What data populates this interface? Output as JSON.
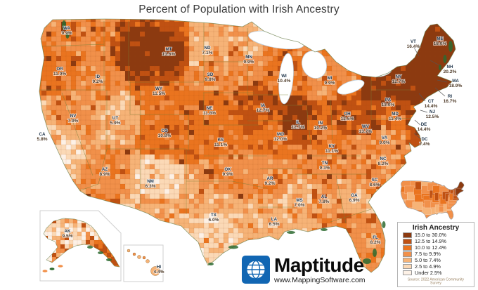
{
  "title": "Percent of Population with Irish Ancestry",
  "legend": {
    "title": "Irish Ancestry",
    "classes": [
      {
        "label": "15.0 to 30.0%",
        "color": "#8c3a10"
      },
      {
        "label": "12.5 to 14.9%",
        "color": "#c05112"
      },
      {
        "label": "10.0 to 12.4%",
        "color": "#ea741f"
      },
      {
        "label": "7.5 to 9.9%",
        "color": "#f1904a"
      },
      {
        "label": "5.0 to 7.4%",
        "color": "#f6b377"
      },
      {
        "label": "2.5 to 4.9%",
        "color": "#fbd9b6"
      },
      {
        "label": "Under 2.5%",
        "color": "#fdf1e6"
      }
    ],
    "source": "Source: 2022 American Community Survey"
  },
  "branding": {
    "name": "Maptitude",
    "url": "www.MappingSoftware.com",
    "logo_color": "#1166b3"
  },
  "chart_data": {
    "type": "choropleth",
    "region": "United States counties",
    "metric": "Percent of population with Irish ancestry",
    "unit": "%",
    "states": [
      {
        "abbr": "WA",
        "value": "9.9%"
      },
      {
        "abbr": "OR",
        "value": "11.0%"
      },
      {
        "abbr": "CA",
        "value": "5.8%"
      },
      {
        "abbr": "NV",
        "value": "7.9%"
      },
      {
        "abbr": "ID",
        "value": "9.2%"
      },
      {
        "abbr": "MT",
        "value": "13.6%"
      },
      {
        "abbr": "WY",
        "value": "11.5%"
      },
      {
        "abbr": "UT",
        "value": "5.9%"
      },
      {
        "abbr": "CO",
        "value": "10.8%"
      },
      {
        "abbr": "AZ",
        "value": "8.9%"
      },
      {
        "abbr": "NM",
        "value": "6.3%"
      },
      {
        "abbr": "ND",
        "value": "7.1%"
      },
      {
        "abbr": "SD",
        "value": "9.8%"
      },
      {
        "abbr": "NE",
        "value": "11.8%"
      },
      {
        "abbr": "KS",
        "value": "11.1%"
      },
      {
        "abbr": "OK",
        "value": "9.9%"
      },
      {
        "abbr": "TX",
        "value": "6.0%"
      },
      {
        "abbr": "MN",
        "value": "9.9%"
      },
      {
        "abbr": "IA",
        "value": "12.7%"
      },
      {
        "abbr": "MO",
        "value": "12.0%"
      },
      {
        "abbr": "AR",
        "value": "9.2%"
      },
      {
        "abbr": "LA",
        "value": "6.5%"
      },
      {
        "abbr": "WI",
        "value": "10.4%"
      },
      {
        "abbr": "IL",
        "value": "12.7%"
      },
      {
        "abbr": "MI",
        "value": "9.9%"
      },
      {
        "abbr": "IN",
        "value": "10.2%"
      },
      {
        "abbr": "OH",
        "value": "12.5%"
      },
      {
        "abbr": "KY",
        "value": "11.1%"
      },
      {
        "abbr": "TN",
        "value": "9.3%"
      },
      {
        "abbr": "MS",
        "value": "7.0%"
      },
      {
        "abbr": "AL",
        "value": "7.8%"
      },
      {
        "abbr": "GA",
        "value": "6.9%"
      },
      {
        "abbr": "FL",
        "value": "8.2%"
      },
      {
        "abbr": "SC",
        "value": "8.6%"
      },
      {
        "abbr": "NC",
        "value": "8.2%"
      },
      {
        "abbr": "VA",
        "value": "9.0%"
      },
      {
        "abbr": "WV",
        "value": "13.7%"
      },
      {
        "abbr": "PA",
        "value": "13.0%"
      },
      {
        "abbr": "NY",
        "value": "12.7%"
      },
      {
        "abbr": "VT",
        "value": "16.4%"
      },
      {
        "abbr": "NH",
        "value": "20.2%"
      },
      {
        "abbr": "ME",
        "value": "18.0%"
      },
      {
        "abbr": "MA",
        "value": "18.9%"
      },
      {
        "abbr": "RI",
        "value": "16.7%"
      },
      {
        "abbr": "CT",
        "value": "14.4%"
      },
      {
        "abbr": "NJ",
        "value": "12.5%"
      },
      {
        "abbr": "DE",
        "value": "14.4%"
      },
      {
        "abbr": "MD",
        "value": "11.4%"
      },
      {
        "abbr": "DC",
        "value": "7.4%"
      },
      {
        "abbr": "AK",
        "value": "9.5%"
      },
      {
        "abbr": "HI",
        "value": "4.4%"
      }
    ]
  }
}
